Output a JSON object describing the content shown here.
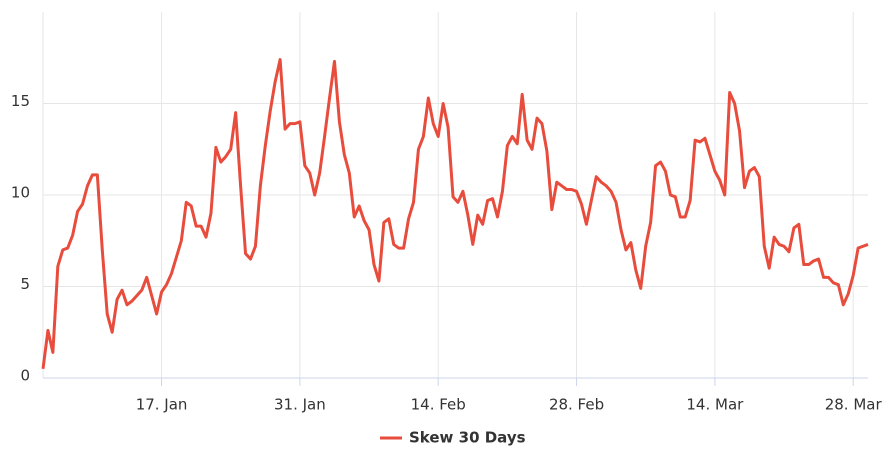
{
  "chart_data": {
    "type": "line",
    "x": [
      5,
      5.5,
      6,
      6.5,
      7,
      7.5,
      8,
      8.5,
      9,
      9.5,
      10,
      10.5,
      11,
      11.5,
      12,
      12.5,
      13,
      13.5,
      14,
      14.5,
      15,
      15.5,
      16,
      16.5,
      17,
      17.5,
      18,
      18.5,
      19,
      19.5,
      20,
      20.5,
      21,
      21.5,
      22,
      22.5,
      23,
      23.5,
      24,
      24.5,
      25,
      25.5,
      26,
      26.5,
      27,
      27.5,
      28,
      28.5,
      29,
      29.5,
      30,
      30.5,
      31,
      31.5,
      32,
      32.5,
      33,
      33.5,
      34,
      34.5,
      35,
      35.5,
      36,
      36.5,
      37,
      37.5,
      38,
      38.5,
      39,
      39.5,
      40,
      40.5,
      41,
      41.5,
      42,
      42.5,
      43,
      43.5,
      44,
      44.5,
      45,
      45.5,
      46,
      46.5,
      47,
      47.5,
      48,
      48.5,
      49,
      49.5,
      50,
      50.5,
      51,
      51.5,
      52,
      52.5,
      53,
      53.5,
      54,
      54.5,
      55,
      55.5,
      56,
      56.5,
      57,
      57.5,
      58,
      58.5,
      59,
      59.5,
      60,
      60.5,
      61,
      61.5,
      62,
      62.5,
      63,
      63.5,
      64,
      64.5,
      65,
      65.5,
      66,
      66.5,
      67,
      67.5,
      68,
      68.5,
      69,
      69.5,
      70,
      70.5,
      71,
      71.5,
      72,
      72.5,
      73,
      73.5,
      74,
      74.5,
      75,
      75.5,
      76,
      76.5,
      77,
      77.5,
      78,
      78.5,
      79,
      79.5,
      80,
      80.5,
      81,
      81.5,
      82,
      82.5,
      83,
      83.5,
      84,
      84.5,
      85,
      85.5,
      86,
      86.5,
      87,
      87.5,
      88,
      88.5
    ],
    "series": [
      {
        "name": "Skew 30 Days",
        "color": "#e74c3c",
        "values": [
          0.5,
          2.6,
          1.4,
          6.1,
          7,
          7.1,
          7.8,
          9.1,
          9.5,
          10.5,
          11.1,
          11.1,
          7,
          3.5,
          2.5,
          4.3,
          4.8,
          4,
          4.2,
          4.5,
          4.8,
          5.5,
          4.5,
          3.5,
          4.7,
          5.1,
          5.7,
          6.6,
          7.5,
          9.6,
          9.4,
          8.3,
          8.3,
          7.7,
          9,
          12.6,
          11.8,
          12.1,
          12.5,
          14.5,
          10.5,
          6.8,
          6.5,
          7.2,
          10.5,
          12.7,
          14.6,
          16.2,
          17.4,
          13.6,
          13.9,
          13.9,
          14,
          11.6,
          11.2,
          10,
          11.2,
          13.2,
          15.3,
          17.3,
          14,
          12.2,
          11.2,
          8.8,
          9.4,
          8.6,
          8.1,
          6.2,
          5.3,
          8.5,
          8.7,
          7.3,
          7.1,
          7.1,
          8.7,
          9.6,
          12.5,
          13.2,
          15.3,
          13.9,
          13.2,
          15,
          13.7,
          9.9,
          9.6,
          10.2,
          8.9,
          7.3,
          8.9,
          8.4,
          9.7,
          9.8,
          8.8,
          10.2,
          12.7,
          13.2,
          12.8,
          15.5,
          13,
          12.5,
          14.2,
          13.9,
          12.4,
          9.2,
          10.7,
          10.5,
          10.3,
          10.3,
          10.2,
          9.5,
          8.4,
          9.7,
          11,
          10.7,
          10.5,
          10.2,
          9.6,
          8.1,
          7,
          7.4,
          5.9,
          4.9,
          7.2,
          8.5,
          11.6,
          11.8,
          11.3,
          10,
          9.9,
          8.8,
          8.8,
          9.7,
          13,
          12.9,
          13.1,
          12.2,
          11.3,
          10.8,
          10,
          15.6,
          15,
          13.5,
          10.4,
          11.3,
          11.5,
          11,
          7.2,
          6,
          7.7,
          7.3,
          7.2,
          6.9,
          8.2,
          8.4,
          6.2,
          6.2,
          6.4,
          6.5,
          5.5,
          5.5,
          5.2,
          5.1,
          4,
          4.6,
          5.6,
          7.1,
          7.2,
          7.3
        ]
      }
    ],
    "xlim": [
      5,
      88.5
    ],
    "xticks": [
      {
        "value": 17,
        "label": "17. Jan"
      },
      {
        "value": 31,
        "label": "31. Jan"
      },
      {
        "value": 45,
        "label": "14. Feb"
      },
      {
        "value": 59,
        "label": "28. Feb"
      },
      {
        "value": 73,
        "label": "14. Mar"
      },
      {
        "value": 87,
        "label": "28. Mar"
      }
    ],
    "ylim": [
      0,
      20
    ],
    "yticks": [
      0,
      5,
      10,
      15
    ],
    "grid": true,
    "legend": "bottom"
  }
}
